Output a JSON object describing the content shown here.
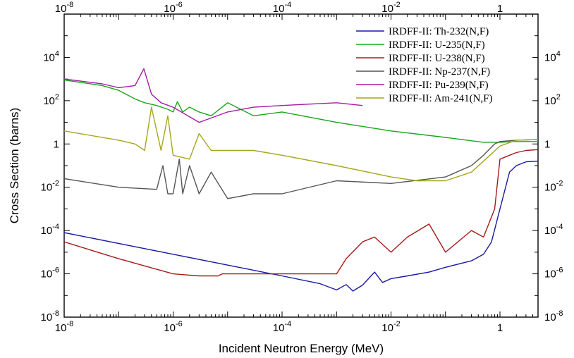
{
  "chart_data": {
    "type": "line",
    "title": "",
    "xlabel": "Incident Neutron Energy (MeV)",
    "ylabel": "Cross Section (barns)",
    "xscale": "log",
    "yscale": "log",
    "xlim": [
      1e-08,
      5
    ],
    "ylim": [
      1e-08,
      1000000.0
    ],
    "grid": false,
    "legend_position": "top-right",
    "x_ticks": [
      {
        "value": 1e-08,
        "base": "10",
        "exp": "-8"
      },
      {
        "value": 1e-06,
        "base": "10",
        "exp": "-6"
      },
      {
        "value": 0.0001,
        "base": "10",
        "exp": "-4"
      },
      {
        "value": 0.01,
        "base": "10",
        "exp": "-2"
      },
      {
        "value": 1,
        "base": "1",
        "exp": ""
      }
    ],
    "y_ticks": [
      {
        "value": 1e-08,
        "base": "10",
        "exp": "-8"
      },
      {
        "value": 1e-06,
        "base": "10",
        "exp": "-6"
      },
      {
        "value": 0.0001,
        "base": "10",
        "exp": "-4"
      },
      {
        "value": 0.01,
        "base": "10",
        "exp": "-2"
      },
      {
        "value": 1,
        "base": "1",
        "exp": ""
      },
      {
        "value": 100,
        "base": "10",
        "exp": "2"
      },
      {
        "value": 10000,
        "base": "10",
        "exp": "4"
      }
    ],
    "series": [
      {
        "name": "IRDFF-II: Th-232(N,F)",
        "color": "#1a1aa6",
        "x": [
          1e-08,
          1e-06,
          0.0001,
          0.0005,
          0.001,
          0.0015,
          0.002,
          0.003,
          0.005,
          0.007,
          0.01,
          0.02,
          0.05,
          0.1,
          0.3,
          0.5,
          0.7,
          1,
          1.5,
          2,
          3,
          5
        ],
        "y": [
          8e-05,
          8e-06,
          8e-07,
          3.5e-07,
          1.8e-07,
          3.2e-07,
          1.6e-07,
          3e-07,
          1.2e-06,
          4e-07,
          6e-07,
          8e-07,
          1.2e-06,
          2e-06,
          4e-06,
          8e-06,
          3e-05,
          0.001,
          0.05,
          0.1,
          0.15,
          0.16
        ]
      },
      {
        "name": "IRDFF-II: U-235(N,F)",
        "color": "#1aa61a",
        "x": [
          1e-08,
          5e-08,
          1e-07,
          2e-07,
          3e-07,
          5e-07,
          8e-07,
          1e-06,
          1.2e-06,
          1.5e-06,
          2e-06,
          3e-06,
          5e-06,
          1e-05,
          3e-05,
          0.0001,
          0.001,
          0.01,
          0.1,
          0.5,
          1,
          2,
          5
        ],
        "y": [
          900,
          500,
          300,
          120,
          80,
          60,
          40,
          30,
          90,
          30,
          50,
          30,
          20,
          80,
          20,
          30,
          10,
          4,
          2,
          1.2,
          1.2,
          1.3,
          1.3
        ]
      },
      {
        "name": "IRDFF-II: U-238(N,F)",
        "color": "#a61a1a",
        "x": [
          1e-08,
          1e-07,
          1e-06,
          3e-06,
          6.7e-06,
          8e-06,
          1e-05,
          2e-05,
          3e-05,
          5e-05,
          0.0001,
          0.0003,
          0.001,
          0.0015,
          0.003,
          0.005,
          0.01,
          0.02,
          0.05,
          0.1,
          0.3,
          0.5,
          0.8,
          1,
          1.5,
          2,
          3,
          5
        ],
        "y": [
          3e-05,
          5e-06,
          1e-06,
          8e-07,
          8e-07,
          1e-06,
          1e-06,
          1e-06,
          1e-06,
          1e-06,
          1e-06,
          1e-06,
          1e-06,
          5e-06,
          3e-05,
          5e-05,
          1e-05,
          5e-05,
          0.0002,
          1e-05,
          0.0001,
          5e-05,
          0.001,
          0.2,
          0.3,
          0.4,
          0.5,
          0.55
        ]
      },
      {
        "name": "IRDFF-II: Np-237(N,F)",
        "color": "#555555",
        "x": [
          1e-08,
          1e-07,
          5e-07,
          6.5e-07,
          8e-07,
          1e-06,
          1.3e-06,
          1.5e-06,
          2e-06,
          3e-06,
          5e-06,
          1e-05,
          3e-05,
          0.0001,
          0.001,
          0.01,
          0.1,
          0.3,
          0.5,
          0.8,
          1,
          2,
          5
        ],
        "y": [
          0.025,
          0.01,
          0.008,
          0.1,
          0.005,
          0.005,
          0.2,
          0.005,
          0.1,
          0.005,
          0.05,
          0.003,
          0.005,
          0.005,
          0.02,
          0.015,
          0.03,
          0.1,
          0.3,
          1,
          1.3,
          1.5,
          1.6
        ]
      },
      {
        "name": "IRDFF-II: Pu-239(N,F)",
        "color": "#a61aa6",
        "x": [
          1e-08,
          5e-08,
          1e-07,
          2e-07,
          2.9e-07,
          4e-07,
          6e-07,
          1e-06,
          3e-06,
          1e-05,
          3e-05,
          0.0001,
          0.001,
          0.003
        ],
        "y": [
          1000,
          600,
          400,
          500,
          3000,
          200,
          80,
          50,
          10,
          30,
          50,
          60,
          80,
          60
        ]
      },
      {
        "name": "IRDFF-II: Am-241(N,F)",
        "color": "#a6a61a",
        "x": [
          1e-08,
          1e-07,
          2e-07,
          3e-07,
          4e-07,
          6e-07,
          8e-07,
          1e-06,
          2e-06,
          3e-06,
          5e-06,
          1e-05,
          3e-05,
          0.0001,
          0.001,
          0.01,
          0.03,
          0.1,
          0.3,
          1,
          2,
          5
        ],
        "y": [
          4,
          1.5,
          1,
          0.5,
          50,
          0.5,
          20,
          0.3,
          0.2,
          3,
          0.5,
          0.5,
          0.5,
          0.3,
          0.1,
          0.03,
          0.02,
          0.02,
          0.05,
          0.8,
          1.5,
          1.6
        ]
      }
    ]
  }
}
